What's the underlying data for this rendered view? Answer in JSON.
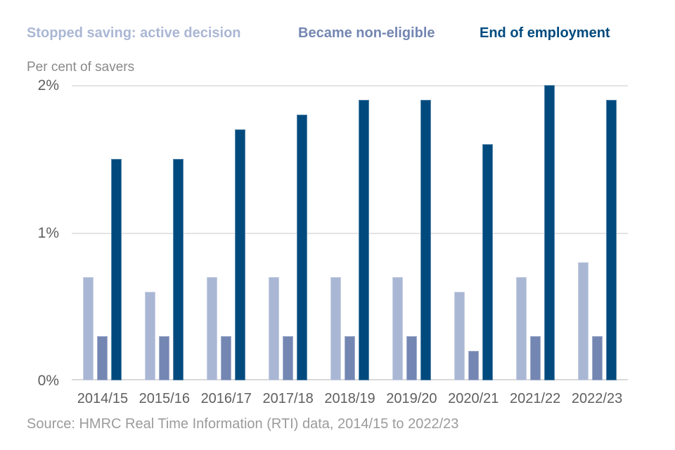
{
  "chart_data": {
    "type": "bar",
    "title": "Per cent of savers",
    "categories": [
      "2014/15",
      "2015/16",
      "2016/17",
      "2017/18",
      "2018/19",
      "2019/20",
      "2020/21",
      "2021/22",
      "2022/23"
    ],
    "series": [
      {
        "name": "Stopped saving: active decision",
        "color": "#aab7d4",
        "values": [
          0.7,
          0.6,
          0.7,
          0.7,
          0.7,
          0.7,
          0.6,
          0.7,
          0.8
        ]
      },
      {
        "name": "Became non-eligible",
        "color": "#7486b2",
        "values": [
          0.3,
          0.3,
          0.3,
          0.3,
          0.3,
          0.3,
          0.2,
          0.3,
          0.3
        ]
      },
      {
        "name": "End of employment",
        "color": "#004a7e",
        "values": [
          1.5,
          1.5,
          1.7,
          1.8,
          1.9,
          1.9,
          1.6,
          2.0,
          1.9
        ]
      }
    ],
    "ylim": [
      0,
      2
    ],
    "yticks": [
      {
        "value": 0,
        "label": "0%"
      },
      {
        "value": 1,
        "label": "1%"
      },
      {
        "value": 2,
        "label": "2%"
      }
    ],
    "grid": true,
    "legend_position": "top",
    "source": "Source: HMRC Real Time Information (RTI) data, 2014/15 to 2022/23"
  }
}
